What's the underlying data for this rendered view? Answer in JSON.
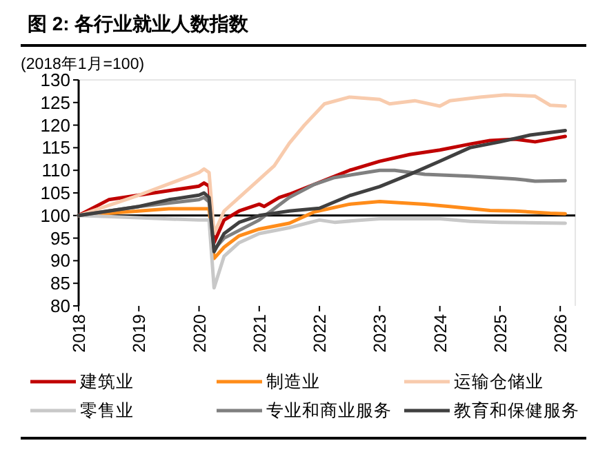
{
  "chart_data": {
    "type": "line",
    "title": "图 2: 各行业就业人数指数",
    "ylabel": "(2018年1月=100)",
    "xlim": [
      "2018-01",
      "2026-04"
    ],
    "xticks": [
      {
        "value": "2018-01",
        "label": "2018"
      },
      {
        "value": "2019-01",
        "label": "2019"
      },
      {
        "value": "2020-01",
        "label": "2020"
      },
      {
        "value": "2021-01",
        "label": "2021"
      },
      {
        "value": "2022-01",
        "label": "2022"
      },
      {
        "value": "2023-01",
        "label": "2023"
      },
      {
        "value": "2024-01",
        "label": "2024"
      },
      {
        "value": "2025-01",
        "label": "2025"
      },
      {
        "value": "2026-01",
        "label": "2026"
      }
    ],
    "ylim": [
      80,
      130
    ],
    "yticks": [
      80,
      85,
      90,
      95,
      100,
      105,
      110,
      115,
      120,
      125,
      130
    ],
    "ref_lines": [
      {
        "axis": "y",
        "value": 100,
        "label": null,
        "color": "#000000"
      }
    ],
    "grid": false,
    "legend": "bottom",
    "marker": "none",
    "line_style": "solid",
    "series": [
      {
        "name": "建筑业",
        "color": "#c00000",
        "x": [
          "2018-01",
          "2018-07",
          "2019-01",
          "2019-07",
          "2020-01",
          "2020-02",
          "2020-03",
          "2020-04",
          "2020-06",
          "2020-09",
          "2021-01",
          "2021-02",
          "2021-05",
          "2021-07",
          "2021-12",
          "2022-07",
          "2023-01",
          "2023-07",
          "2024-01",
          "2024-07",
          "2024-11",
          "2025-04",
          "2025-08",
          "2026-02"
        ],
        "values": [
          100,
          103.5,
          104.5,
          105.5,
          106.5,
          107.2,
          106.5,
          94,
          99,
          101,
          102.5,
          102,
          104,
          104.7,
          106.9,
          110,
          112,
          113.5,
          114.5,
          115.8,
          116.6,
          116.9,
          116.3,
          117.5
        ]
      },
      {
        "name": "制造业",
        "color": "#ff8c1a",
        "x": [
          "2018-01",
          "2019-01",
          "2019-07",
          "2020-03",
          "2020-04",
          "2020-06",
          "2020-09",
          "2021-01",
          "2021-07",
          "2021-12",
          "2022-07",
          "2023-01",
          "2023-10",
          "2024-03",
          "2024-11",
          "2025-04",
          "2025-11",
          "2026-02"
        ],
        "values": [
          100,
          101,
          101.5,
          101.5,
          90.5,
          93,
          95.5,
          97,
          98.3,
          100.8,
          102.5,
          103.1,
          102.5,
          102,
          101.1,
          101,
          100.5,
          100.4
        ]
      },
      {
        "name": "运输仓储业",
        "color": "#f8cbad",
        "x": [
          "2018-01",
          "2019-01",
          "2019-07",
          "2020-01",
          "2020-02",
          "2020-03",
          "2020-04",
          "2020-06",
          "2020-09",
          "2021-01",
          "2021-04",
          "2021-07",
          "2021-10",
          "2022-02",
          "2022-07",
          "2023-01",
          "2023-03",
          "2023-08",
          "2024-01",
          "2024-03",
          "2024-09",
          "2025-02",
          "2025-08",
          "2025-11",
          "2026-02"
        ],
        "values": [
          100,
          104.5,
          107,
          109.5,
          110.3,
          109.5,
          96,
          101,
          104,
          108,
          111,
          116,
          120,
          124.7,
          126.2,
          125.7,
          124.7,
          125.4,
          124.2,
          125.4,
          126.2,
          126.7,
          126.4,
          124.4,
          124.2
        ]
      },
      {
        "name": "零售业",
        "color": "#c8c8c8",
        "x": [
          "2018-01",
          "2019-01",
          "2020-01",
          "2020-03",
          "2020-04",
          "2020-06",
          "2020-09",
          "2021-01",
          "2021-07",
          "2022-01",
          "2022-04",
          "2023-01",
          "2024-01",
          "2024-07",
          "2025-01",
          "2026-02"
        ],
        "values": [
          100,
          99.5,
          99,
          99,
          84,
          91,
          94,
          96,
          97.3,
          99,
          98.5,
          99.3,
          99.3,
          98.7,
          98.5,
          98.3
        ]
      },
      {
        "name": "专业和商业服务",
        "color": "#808080",
        "x": [
          "2018-01",
          "2019-01",
          "2020-01",
          "2020-02",
          "2020-03",
          "2020-04",
          "2020-06",
          "2021-01",
          "2021-07",
          "2021-12",
          "2022-04",
          "2023-01",
          "2023-04",
          "2023-10",
          "2024-07",
          "2025-04",
          "2025-08",
          "2026-02"
        ],
        "values": [
          100,
          102,
          103.5,
          104,
          103,
          92.5,
          95,
          99,
          104,
          106.9,
          108.4,
          110,
          110,
          109.1,
          108.7,
          108.1,
          107.6,
          107.7
        ]
      },
      {
        "name": "教育和保健服务",
        "color": "#404040",
        "x": [
          "2018-01",
          "2019-01",
          "2019-07",
          "2020-01",
          "2020-02",
          "2020-03",
          "2020-04",
          "2020-06",
          "2020-09",
          "2021-01",
          "2021-07",
          "2022-01",
          "2022-07",
          "2023-01",
          "2023-07",
          "2024-01",
          "2024-07",
          "2025-01",
          "2025-07",
          "2026-02"
        ],
        "values": [
          100,
          102,
          103.5,
          104.5,
          105,
          104,
          92,
          96,
          98.5,
          100,
          101,
          101.6,
          104.4,
          106.4,
          109.1,
          112,
          115,
          116.3,
          117.8,
          118.8
        ]
      }
    ]
  }
}
